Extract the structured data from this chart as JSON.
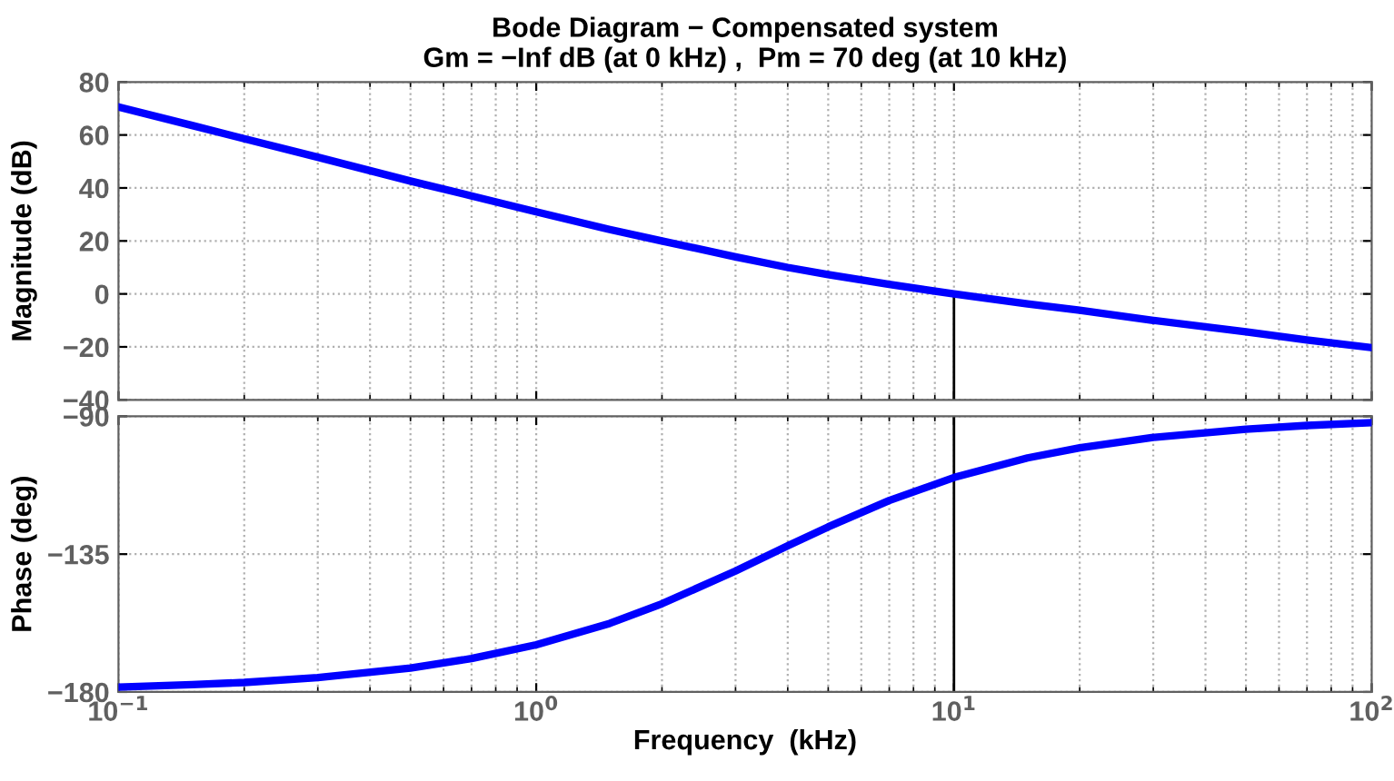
{
  "chart_data": [
    {
      "type": "line",
      "title": "Bode Diagram − Compensated system",
      "subtitle": "Gm = −Inf dB (at 0 kHz) ,  Pm = 70 deg (at 10 kHz)",
      "ylabel": "Magnitude (dB)",
      "log": "x",
      "grid": true,
      "tick_labels": "y",
      "line_style": "solid",
      "xlim": [
        0.1,
        100
      ],
      "ylim": [
        -40,
        80
      ],
      "yticks": [
        {
          "value": -40,
          "label": "−40"
        },
        {
          "value": -20,
          "label": "−20"
        },
        0,
        20,
        40,
        60,
        80
      ],
      "xticks": [
        {
          "value": 0.1,
          "label": null
        },
        {
          "value": 1,
          "label": null
        },
        {
          "value": 10,
          "label": null
        },
        {
          "value": 100,
          "label": null
        }
      ],
      "series": [
        {
          "color": "#0000ff",
          "x": [
            0.1,
            0.15,
            0.2,
            0.3,
            0.5,
            0.7,
            1,
            1.5,
            2,
            3,
            4,
            5,
            7,
            10,
            15,
            20,
            30,
            50,
            70,
            100
          ],
          "values": [
            70.6,
            63.6,
            58.6,
            51.6,
            42.6,
            37.0,
            31.0,
            24.3,
            20.0,
            14.0,
            10.0,
            7.3,
            3.6,
            0,
            -3.8,
            -6.2,
            -10.0,
            -14.3,
            -17.4,
            -20.3
          ]
        },
        {
          "color": "#000000",
          "x": [
            10,
            10
          ],
          "values": [
            0,
            -40
          ]
        }
      ]
    },
    {
      "type": "line",
      "xlabel": "Frequency  (kHz)",
      "ylabel": "Phase (deg)",
      "log": "x",
      "grid": true,
      "line_style": "solid",
      "xlim": [
        0.1,
        100
      ],
      "ylim": [
        -180,
        -90
      ],
      "yticks": [
        {
          "value": -180,
          "label": "−180"
        },
        {
          "value": -135,
          "label": "−135"
        },
        {
          "value": -90,
          "label": "−90"
        }
      ],
      "xticks": [
        {
          "value": 0.1,
          "label": "10$^{−1}$"
        },
        {
          "value": 1,
          "label": "10$^{0}$"
        },
        {
          "value": 10,
          "label": "10$^{1}$"
        },
        {
          "value": 100,
          "label": "10$^{2}$"
        }
      ],
      "ref_lines": [
        {
          "axis": "x",
          "value": 10,
          "color": "#000000"
        }
      ],
      "series": [
        {
          "color": "#0000ff",
          "x": [
            0.1,
            0.15,
            0.2,
            0.3,
            0.5,
            0.7,
            1,
            1.5,
            2,
            3,
            4,
            5,
            7,
            10,
            15,
            20,
            30,
            50,
            70,
            100
          ],
          "values": [
            -178.4,
            -177.6,
            -176.9,
            -175.3,
            -172.2,
            -169.1,
            -164.6,
            -157.6,
            -151.2,
            -140.5,
            -132.3,
            -126.1,
            -117.5,
            -110.0,
            -103.6,
            -100.3,
            -96.9,
            -94.2,
            -93.0,
            -92.1
          ]
        }
      ]
    }
  ]
}
